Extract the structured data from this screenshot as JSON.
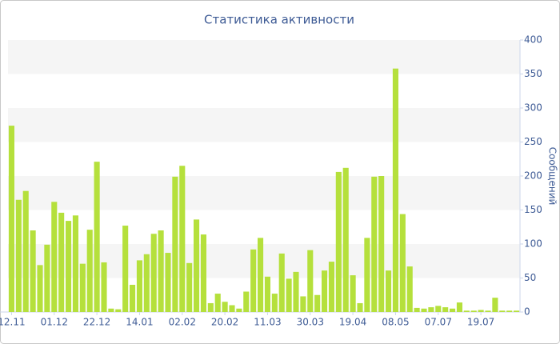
{
  "chart_data": {
    "type": "bar",
    "title": "Статистика активности",
    "y_label": "Сообщений",
    "categories": [
      "12.11",
      null,
      null,
      null,
      null,
      null,
      "01.12",
      null,
      null,
      null,
      null,
      null,
      "22.12",
      null,
      null,
      null,
      null,
      null,
      "14.01",
      null,
      null,
      null,
      null,
      null,
      "02.02",
      null,
      null,
      null,
      null,
      null,
      "20.02",
      null,
      null,
      null,
      null,
      null,
      "11.03",
      null,
      null,
      null,
      null,
      null,
      "30.03",
      null,
      null,
      null,
      null,
      null,
      "19.04",
      null,
      null,
      null,
      null,
      null,
      "08.05",
      null,
      null,
      null,
      null,
      null,
      "07.07",
      null,
      null,
      null,
      null,
      null,
      "19.07",
      null,
      null,
      null,
      null,
      null
    ],
    "values": [
      274,
      165,
      178,
      120,
      69,
      99,
      162,
      146,
      134,
      142,
      71,
      121,
      221,
      73,
      5,
      4,
      127,
      40,
      76,
      85,
      115,
      120,
      87,
      199,
      215,
      72,
      136,
      114,
      13,
      27,
      15,
      10,
      5,
      30,
      92,
      109,
      52,
      27,
      86,
      49,
      59,
      23,
      91,
      25,
      61,
      74,
      206,
      212,
      54,
      13,
      109,
      199,
      200,
      61,
      358,
      144,
      67,
      6,
      5,
      7,
      9,
      7,
      5,
      14,
      2,
      2,
      3,
      2,
      21,
      2,
      2,
      2
    ],
    "color": "#b5e03c",
    "ylim": [
      0,
      400
    ],
    "yticks": [
      0,
      50,
      100,
      150,
      200,
      250,
      300,
      350,
      400
    ],
    "grid": "bands"
  }
}
